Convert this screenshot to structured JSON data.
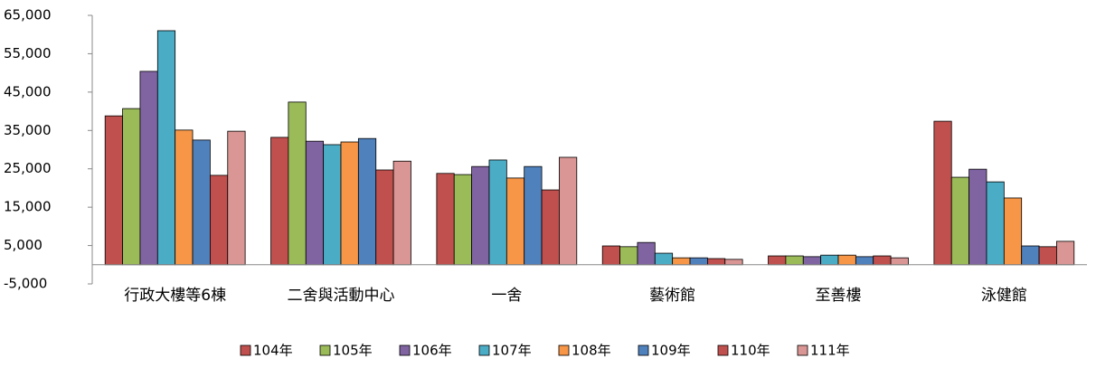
{
  "chart_data": {
    "type": "bar",
    "categories": [
      "行政大樓等6棟",
      "二舍與活動中心",
      "一舍",
      "藝術館",
      "至善樓",
      "泳健館"
    ],
    "series": [
      {
        "name": "104年",
        "color": "#c0504d",
        "values": [
          38800,
          33200,
          23800,
          4900,
          2300,
          37400
        ]
      },
      {
        "name": "105年",
        "color": "#9bbb59",
        "values": [
          40700,
          42400,
          23500,
          4700,
          2300,
          22800
        ]
      },
      {
        "name": "106年",
        "color": "#8064a2",
        "values": [
          50400,
          32200,
          25600,
          5800,
          2100,
          24900
        ]
      },
      {
        "name": "107年",
        "color": "#4bacc6",
        "values": [
          61000,
          31300,
          27300,
          3000,
          2500,
          21600
        ]
      },
      {
        "name": "108年",
        "color": "#f79646",
        "values": [
          35100,
          32000,
          22600,
          1800,
          2500,
          17400
        ]
      },
      {
        "name": "109年",
        "color": "#4f81bd",
        "values": [
          32500,
          32900,
          25600,
          1800,
          2100,
          4900
        ]
      },
      {
        "name": "110年",
        "color": "#c0504d",
        "values": [
          23300,
          24700,
          19500,
          1600,
          2300,
          4700
        ]
      },
      {
        "name": "111年",
        "color": "#d99694",
        "values": [
          34800,
          27000,
          28000,
          1400,
          1800,
          6100
        ]
      }
    ],
    "ylim": [
      -5000,
      65000
    ],
    "yticks": [
      {
        "value": -5000,
        "label": "-5,000"
      },
      {
        "value": 5000,
        "label": "5,000"
      },
      {
        "value": 15000,
        "label": "15,000"
      },
      {
        "value": 25000,
        "label": "25,000"
      },
      {
        "value": 35000,
        "label": "35,000"
      },
      {
        "value": 45000,
        "label": "45,000"
      },
      {
        "value": 55000,
        "label": "55,000"
      },
      {
        "value": 65000,
        "label": "65,000"
      }
    ],
    "grid": false
  }
}
